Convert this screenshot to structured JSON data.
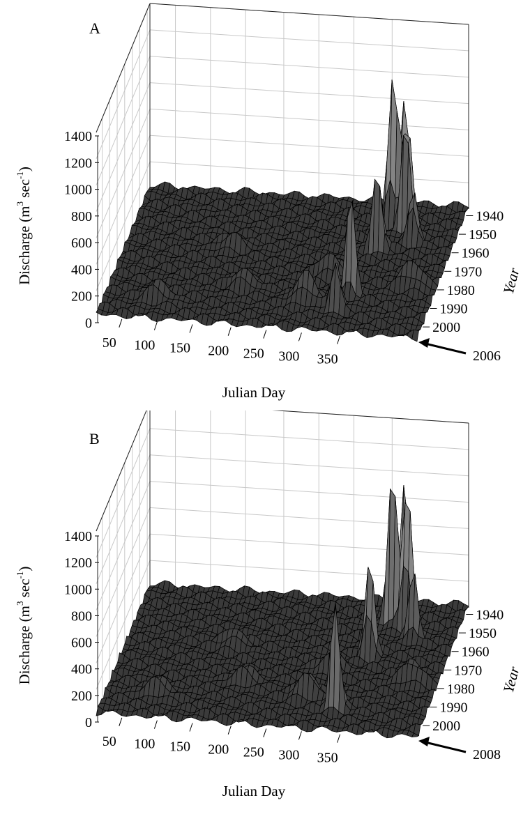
{
  "chart_data": [
    {
      "type": "surface",
      "panel_label": "A",
      "xlabel": "Julian Day",
      "ylabel_main": "Discharge (m",
      "ylabel_sup1": "3",
      "ylabel_mid": " sec",
      "ylabel_sup2": "-1",
      "ylabel_end": ")",
      "zlabel": "Year",
      "x_ticks": [
        "50",
        "100",
        "150",
        "200",
        "250",
        "300",
        "350"
      ],
      "y_ticks": [
        "1940",
        "1950",
        "1960",
        "1970",
        "1980",
        "1990",
        "2000"
      ],
      "z_ticks": [
        "0",
        "200",
        "400",
        "600",
        "800",
        "1000",
        "1200",
        "1400"
      ],
      "xlim": [
        1,
        365
      ],
      "year_range": [
        1935,
        2006
      ],
      "zlim": [
        0,
        1400
      ],
      "callout_year": "2006",
      "peaks": [
        {
          "day": 305,
          "year": 1948,
          "discharge": 1350
        },
        {
          "day": 298,
          "year": 1943,
          "discharge": 1200
        },
        {
          "day": 286,
          "year": 1945,
          "discharge": 1160
        },
        {
          "day": 282,
          "year": 1960,
          "discharge": 900
        },
        {
          "day": 272,
          "year": 1985,
          "discharge": 750
        },
        {
          "day": 262,
          "year": 1993,
          "discharge": 600
        },
        {
          "day": 318,
          "year": 1955,
          "discharge": 550
        },
        {
          "day": 335,
          "year": 1978,
          "discharge": 180
        },
        {
          "day": 225,
          "year": 1990,
          "discharge": 200
        },
        {
          "day": 240,
          "year": 1975,
          "discharge": 150
        },
        {
          "day": 60,
          "year": 1995,
          "discharge": 140
        },
        {
          "day": 120,
          "year": 1965,
          "discharge": 120
        },
        {
          "day": 150,
          "year": 1985,
          "discharge": 130
        }
      ]
    },
    {
      "type": "surface",
      "panel_label": "B",
      "xlabel": "Julian Day",
      "ylabel_main": "Discharge (m",
      "ylabel_sup1": "3",
      "ylabel_mid": " sec",
      "ylabel_sup2": "-1",
      "ylabel_end": ")",
      "zlabel": "Year",
      "x_ticks": [
        "50",
        "100",
        "150",
        "200",
        "250",
        "300",
        "350"
      ],
      "y_ticks": [
        "1940",
        "1950",
        "1960",
        "1970",
        "1980",
        "1990",
        "2000"
      ],
      "z_ticks": [
        "0",
        "200",
        "400",
        "600",
        "800",
        "1000",
        "1200",
        "1400"
      ],
      "xlim": [
        1,
        365
      ],
      "year_range": [
        1935,
        2008
      ],
      "zlim": [
        0,
        1400
      ],
      "callout_year": "2008",
      "peaks": [
        {
          "day": 305,
          "year": 1948,
          "discharge": 1350
        },
        {
          "day": 298,
          "year": 1943,
          "discharge": 1200
        },
        {
          "day": 288,
          "year": 1947,
          "discharge": 1150
        },
        {
          "day": 276,
          "year": 1965,
          "discharge": 900
        },
        {
          "day": 262,
          "year": 1995,
          "discharge": 1050
        },
        {
          "day": 318,
          "year": 1955,
          "discharge": 550
        },
        {
          "day": 335,
          "year": 1978,
          "discharge": 180
        },
        {
          "day": 225,
          "year": 1990,
          "discharge": 200
        },
        {
          "day": 240,
          "year": 1975,
          "discharge": 150
        },
        {
          "day": 60,
          "year": 1995,
          "discharge": 140
        },
        {
          "day": 120,
          "year": 1965,
          "discharge": 120
        },
        {
          "day": 150,
          "year": 1985,
          "discharge": 130
        }
      ]
    }
  ]
}
